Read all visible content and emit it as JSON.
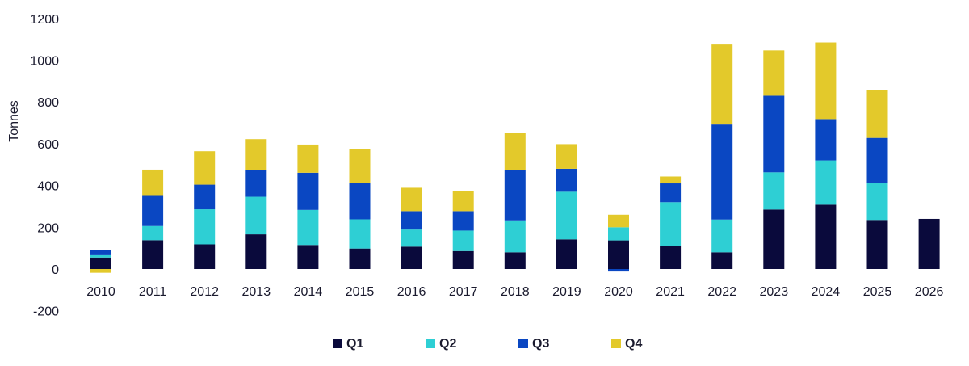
{
  "chart_data": {
    "type": "bar",
    "stacked": true,
    "title": "",
    "xlabel": "",
    "ylabel": "Tonnes",
    "ylim": [
      -200,
      1200
    ],
    "yticks": [
      -200,
      0,
      200,
      400,
      600,
      800,
      1000,
      1200
    ],
    "grid": false,
    "legend_position": "bottom",
    "categories": [
      "2010",
      "2011",
      "2012",
      "2013",
      "2014",
      "2015",
      "2016",
      "2017",
      "2018",
      "2019",
      "2020",
      "2021",
      "2022",
      "2023",
      "2024",
      "2025",
      "2026"
    ],
    "series": [
      {
        "name": "Q1",
        "color": "#0a0a3c",
        "values": [
          55,
          138,
          118,
          166,
          115,
          98,
          107,
          86,
          80,
          142,
          137,
          112,
          80,
          285,
          308,
          235,
          240
        ]
      },
      {
        "name": "Q2",
        "color": "#2ecfd4",
        "values": [
          15,
          68,
          168,
          180,
          168,
          140,
          82,
          98,
          153,
          228,
          63,
          208,
          157,
          178,
          212,
          175,
          0
        ]
      },
      {
        "name": "Q3",
        "color": "#0a47c2",
        "values": [
          20,
          148,
          118,
          128,
          178,
          173,
          88,
          93,
          240,
          110,
          -12,
          90,
          455,
          367,
          198,
          218,
          0
        ]
      },
      {
        "name": "Q4",
        "color": "#e3c92b",
        "values": [
          -18,
          122,
          160,
          148,
          135,
          162,
          112,
          95,
          177,
          118,
          60,
          33,
          383,
          217,
          367,
          228,
          0
        ]
      }
    ]
  }
}
